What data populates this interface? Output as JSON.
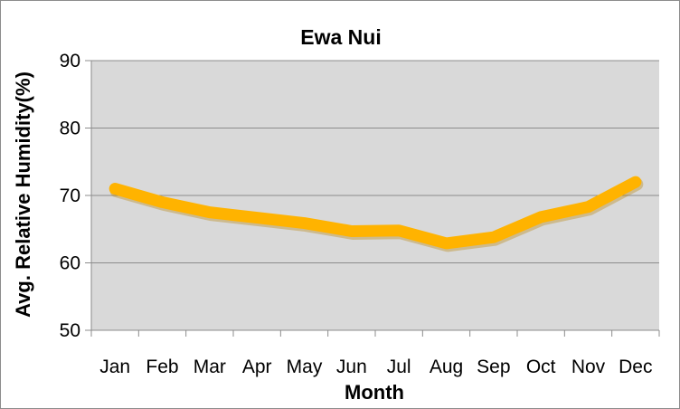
{
  "chart_data": {
    "type": "line",
    "title": "Ewa Nui",
    "xlabel": "Month",
    "ylabel": "Avg. Relative Humidity(%)",
    "categories": [
      "Jan",
      "Feb",
      "Mar",
      "Apr",
      "May",
      "Jun",
      "Jul",
      "Aug",
      "Sep",
      "Oct",
      "Nov",
      "Dec"
    ],
    "series": [
      {
        "values": [
          71,
          69,
          67.5,
          66.7,
          65.9,
          64.7,
          64.8,
          62.9,
          63.8,
          66.8,
          68.3,
          72
        ]
      }
    ],
    "ylim": [
      50,
      90
    ],
    "yticks": [
      50,
      60,
      70,
      80,
      90
    ],
    "grid": true,
    "legend": "none",
    "colors": {
      "line": "#FFB300",
      "plot_background": "#D9D9D9",
      "grid": "#8c8c8c"
    }
  }
}
